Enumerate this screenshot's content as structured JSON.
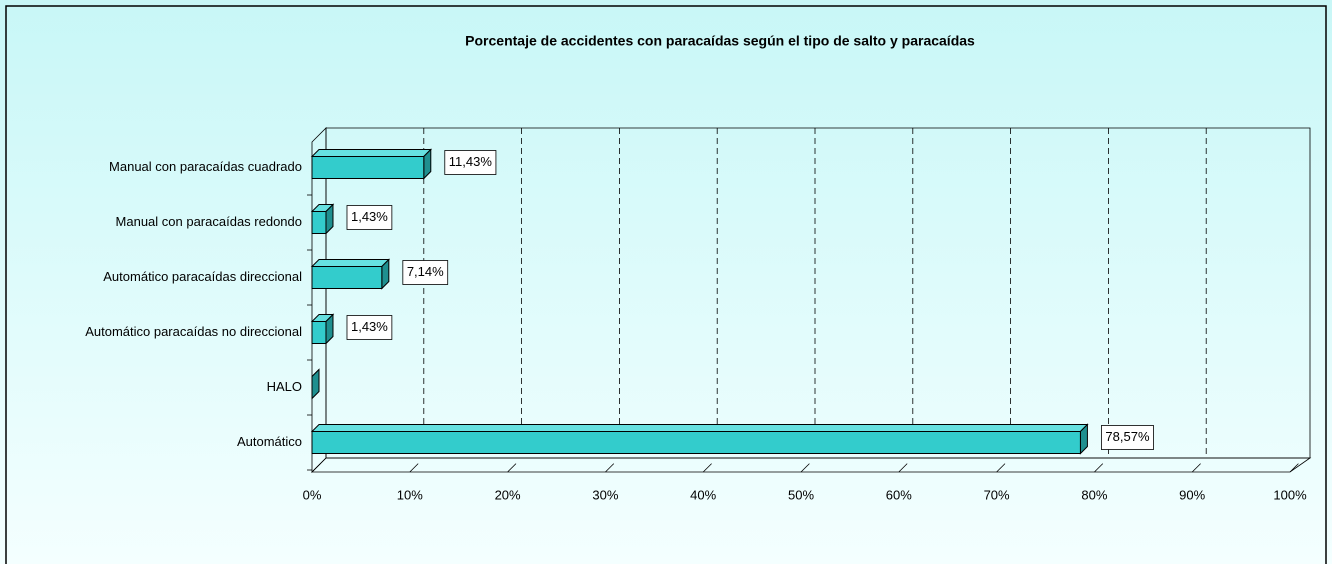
{
  "chart_data": {
    "type": "bar3d_horizontal",
    "title": "Porcentaje de accidentes con paracaídas según el tipo de salto y paracaídas",
    "categories": [
      "Manual con paracaídas cuadrado",
      "Manual con paracaídas redondo",
      "Automático paracaídas direccional",
      "Automático paracaídas no direccional",
      "HALO",
      "Automático"
    ],
    "values": [
      11.43,
      1.43,
      7.14,
      1.43,
      0,
      78.57
    ],
    "value_labels": [
      "11,43%",
      "1,43%",
      "7,14%",
      "1,43%",
      null,
      "78,57%"
    ],
    "color": "#33cccc",
    "xlim": [
      0,
      100
    ],
    "xticks": [
      {
        "value": 0,
        "label": "0%"
      },
      {
        "value": 10,
        "label": "10%"
      },
      {
        "value": 20,
        "label": "20%"
      },
      {
        "value": 30,
        "label": "30%"
      },
      {
        "value": 40,
        "label": "40%"
      },
      {
        "value": 50,
        "label": "50%"
      },
      {
        "value": 60,
        "label": "60%"
      },
      {
        "value": 70,
        "label": "70%"
      },
      {
        "value": 80,
        "label": "80%"
      },
      {
        "value": 90,
        "label": "90%"
      },
      {
        "value": 100,
        "label": "100%"
      }
    ],
    "grid": true
  }
}
